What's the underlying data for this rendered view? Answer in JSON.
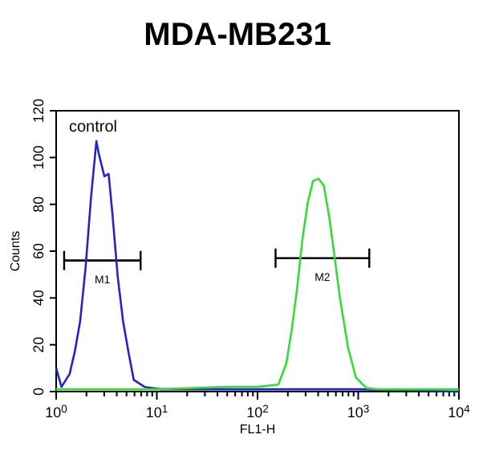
{
  "chart_data": {
    "type": "line",
    "title": "MDA-MB231",
    "xlabel": "FL1-H",
    "ylabel": "Counts",
    "log": "x",
    "grid": false,
    "annotations": [
      "control",
      {
        "text": "M1",
        "x": 2.88,
        "y": 56
      },
      {
        "text": "M2",
        "x": 441,
        "y": 57
      }
    ],
    "xlim": [
      1,
      10000
    ],
    "ylim": [
      0,
      120
    ],
    "yticks": [
      0,
      20,
      40,
      60,
      80,
      100,
      120
    ],
    "xticks": [
      {
        "value": 1,
        "label": "10$^{0}$"
      },
      {
        "value": 2,
        "label": null
      },
      {
        "value": 3,
        "label": null
      },
      {
        "value": 4,
        "label": null
      },
      {
        "value": 5,
        "label": null
      },
      {
        "value": 6,
        "label": null
      },
      {
        "value": 7,
        "label": null
      },
      {
        "value": 8,
        "label": null
      },
      {
        "value": 9,
        "label": null
      },
      {
        "value": 10,
        "label": "10$^{1}$"
      },
      {
        "value": 20,
        "label": null
      },
      {
        "value": 30,
        "label": null
      },
      {
        "value": 40,
        "label": null
      },
      {
        "value": 50,
        "label": null
      },
      {
        "value": 60,
        "label": null
      },
      {
        "value": 70,
        "label": null
      },
      {
        "value": 80,
        "label": null
      },
      {
        "value": 90,
        "label": null
      },
      {
        "value": 100,
        "label": "10$^{2}$"
      },
      {
        "value": 200,
        "label": null
      },
      {
        "value": 300,
        "label": null
      },
      {
        "value": 400,
        "label": null
      },
      {
        "value": 500,
        "label": null
      },
      {
        "value": 600,
        "label": null
      },
      {
        "value": 700,
        "label": null
      },
      {
        "value": 800,
        "label": null
      },
      {
        "value": 900,
        "label": null
      },
      {
        "value": 1000,
        "label": "10$^{3}$"
      },
      {
        "value": 2000,
        "label": null
      },
      {
        "value": 3000,
        "label": null
      },
      {
        "value": 4000,
        "label": null
      },
      {
        "value": 5000,
        "label": null
      },
      {
        "value": 6000,
        "label": null
      },
      {
        "value": 7000,
        "label": null
      },
      {
        "value": 8000,
        "label": null
      },
      {
        "value": 9000,
        "label": null
      },
      {
        "value": 10000,
        "label": "10$^{4}$"
      }
    ],
    "series": [
      {
        "color": "#000000",
        "x": [
          1.2,
          6.9
        ],
        "values": [
          56,
          56
        ]
      },
      {
        "color": "#000000",
        "x": [
          151,
          1288
        ],
        "values": [
          57,
          57
        ]
      },
      {
        "color": "#2424c8",
        "x": [
          1,
          1.13,
          1.36,
          1.53,
          1.73,
          1.96,
          2.22,
          2.51,
          2.67,
          3.01,
          3.32,
          3.62,
          4.09,
          4.62,
          5.22,
          5.9,
          7.55,
          10.9,
          100,
          1000,
          10000
        ],
        "values": [
          10,
          2,
          7.5,
          17,
          30,
          53,
          83,
          107,
          101,
          92,
          93,
          76,
          49,
          30,
          17,
          5,
          2,
          1,
          1,
          1,
          0
        ]
      },
      {
        "color": "#33dd33",
        "x": [
          1,
          10,
          50,
          100,
          161,
          193,
          218,
          247,
          279,
          316,
          356,
          403,
          455,
          514,
          581,
          658,
          791,
          948,
          1211,
          1585,
          10000
        ],
        "values": [
          1,
          1,
          2,
          2,
          3,
          12,
          26,
          44,
          65,
          81,
          90,
          91,
          88,
          75,
          58,
          40,
          19,
          6,
          1.5,
          1,
          1
        ]
      }
    ]
  }
}
